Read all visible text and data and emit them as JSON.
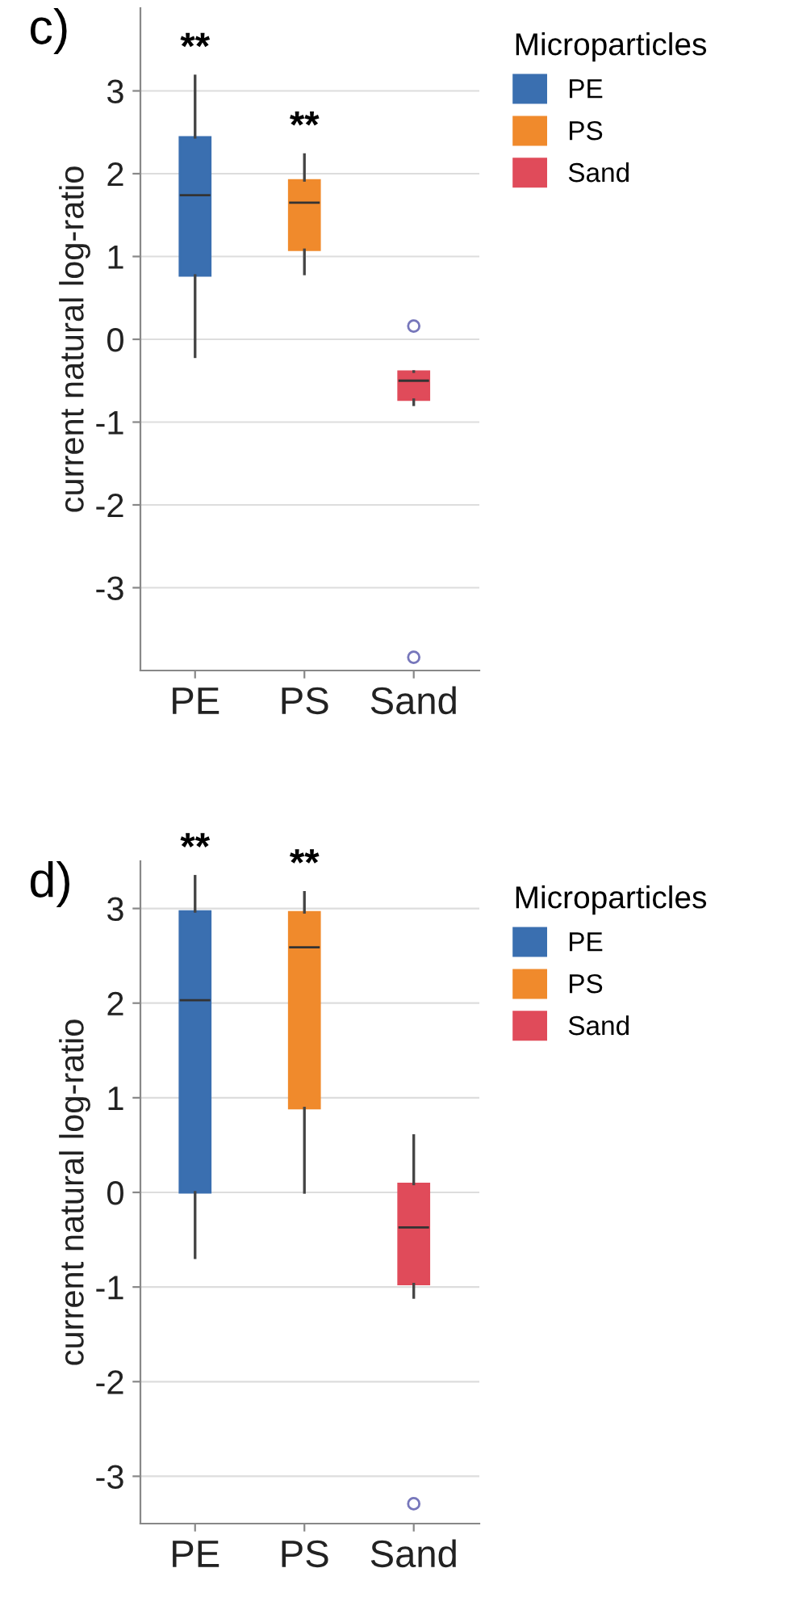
{
  "chart_data": [
    {
      "type": "box",
      "ylabel": "current natural log-ratio",
      "legend_title": "Microparticles",
      "categories": [
        "PE",
        "PS",
        "Sand"
      ],
      "series": [
        {
          "name": "PE",
          "color": "#3a6fb0",
          "boxes": [
            {
              "low": -0.21,
              "q1": 0.77,
              "median": 1.74,
              "q3": 2.44,
              "high": 3.18
            },
            null,
            null
          ]
        },
        {
          "name": "PS",
          "color": "#f08a2c",
          "boxes": [
            null,
            {
              "low": 0.79,
              "q1": 1.08,
              "median": 1.65,
              "q3": 1.92,
              "high": 2.23
            },
            null
          ]
        },
        {
          "name": "Sand",
          "color": "#e04b5a",
          "boxes": [
            null,
            null,
            {
              "low": -0.79,
              "q1": -0.73,
              "median": -0.5,
              "q3": -0.39,
              "high": -0.39,
              "outliers": [
                0.16,
                -3.84
              ]
            }
          ]
        }
      ],
      "ylim": [
        -4,
        4
      ],
      "yticks": [
        -3,
        -2,
        -1,
        0,
        1,
        2,
        3
      ],
      "grid": "y",
      "legend": "top right",
      "annotations": [
        "c)",
        "**",
        "**"
      ]
    },
    {
      "type": "box",
      "ylabel": "current natural log-ratio",
      "legend_title": "Microparticles",
      "categories": [
        "PE",
        "PS",
        "Sand"
      ],
      "series": [
        {
          "name": "PE",
          "color": "#3a6fb0",
          "boxes": [
            {
              "low": -0.69,
              "q1": 0.0,
              "median": 2.03,
              "q3": 2.97,
              "high": 3.34
            },
            null,
            null
          ]
        },
        {
          "name": "PS",
          "color": "#f08a2c",
          "boxes": [
            null,
            {
              "low": 0.0,
              "q1": 0.89,
              "median": 2.59,
              "q3": 2.96,
              "high": 3.17
            },
            null
          ]
        },
        {
          "name": "Sand",
          "color": "#e04b5a",
          "boxes": [
            null,
            null,
            {
              "low": -1.11,
              "q1": -0.97,
              "median": -0.37,
              "q3": 0.09,
              "high": 0.6,
              "outliers": [
                -3.29
              ]
            }
          ]
        }
      ],
      "ylim": [
        -3.5,
        3.5
      ],
      "yticks": [
        -3,
        -2,
        -1,
        0,
        1,
        2,
        3
      ],
      "grid": "y",
      "legend": "top right",
      "annotations": [
        "d)",
        "**",
        "**"
      ]
    }
  ]
}
